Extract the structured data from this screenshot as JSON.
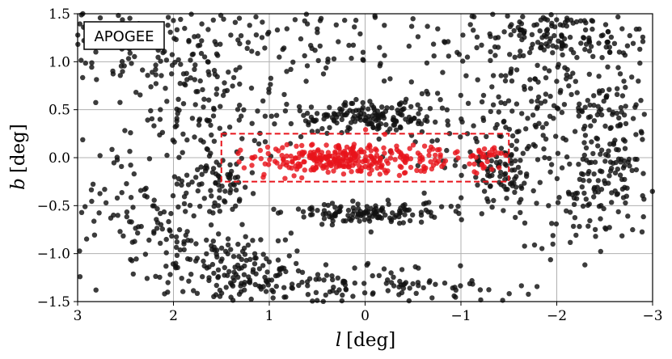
{
  "chart_data": {
    "type": "scatter",
    "xlabel": {
      "symbol": "l",
      "unit": "[deg]"
    },
    "ylabel": {
      "symbol": "b",
      "unit": "[deg]"
    },
    "xlim": [
      3,
      -3
    ],
    "ylim": [
      -1.5,
      1.5
    ],
    "grid": true,
    "x_ticks": [
      {
        "value": 3,
        "label": "3"
      },
      {
        "value": 2,
        "label": "2"
      },
      {
        "value": 1,
        "label": "1"
      },
      {
        "value": 0,
        "label": "0"
      },
      {
        "value": -1,
        "label": "−1"
      },
      {
        "value": -2,
        "label": "−2"
      },
      {
        "value": -3,
        "label": "−3"
      }
    ],
    "y_ticks": [
      {
        "value": 1.5,
        "label": "1.5"
      },
      {
        "value": 1.0,
        "label": "1.0"
      },
      {
        "value": 0.5,
        "label": "0.5"
      },
      {
        "value": 0.0,
        "label": "0.0"
      },
      {
        "value": -0.5,
        "label": "−0.5"
      },
      {
        "value": -1.0,
        "label": "−1.0"
      },
      {
        "value": -1.5,
        "label": "−1.5"
      }
    ],
    "box_label": "APOGEE",
    "region_rectangle": {
      "l_range": [
        1.5,
        -1.5
      ],
      "b_range": [
        -0.25,
        0.25
      ],
      "color": "#e8141b",
      "style": "dashed"
    },
    "series": [
      {
        "color": "#111111",
        "clusters": [
          {
            "l": 0.0,
            "b": 0.42,
            "sl": 0.45,
            "sb": 0.08,
            "n": 160
          },
          {
            "l": 0.0,
            "b": -0.58,
            "sl": 0.4,
            "sb": 0.06,
            "n": 130
          },
          {
            "l": -2.6,
            "b": -0.2,
            "sl": 0.25,
            "sb": 0.25,
            "n": 90
          },
          {
            "l": -2.5,
            "b": 0.35,
            "sl": 0.25,
            "sb": 0.2,
            "n": 55
          },
          {
            "l": 1.25,
            "b": -1.2,
            "sl": 0.35,
            "sb": 0.2,
            "n": 120
          },
          {
            "l": 0.0,
            "b": -1.35,
            "sl": 0.7,
            "sb": 0.12,
            "n": 130
          },
          {
            "l": -1.45,
            "b": -0.15,
            "sl": 0.15,
            "sb": 0.12,
            "n": 60
          },
          {
            "l": 1.55,
            "b": -0.3,
            "sl": 0.2,
            "sb": 0.15,
            "n": 50
          },
          {
            "l": 1.7,
            "b": 0.5,
            "sl": 0.5,
            "sb": 0.5,
            "n": 180
          },
          {
            "l": -1.9,
            "b": 0.7,
            "sl": 0.5,
            "sb": 0.4,
            "n": 180
          },
          {
            "l": -2.0,
            "b": 1.3,
            "sl": 0.6,
            "sb": 0.15,
            "n": 120
          },
          {
            "l": 2.4,
            "b": 1.2,
            "sl": 0.5,
            "sb": 0.25,
            "n": 90
          },
          {
            "l": 0.5,
            "b": 1.3,
            "sl": 1.0,
            "sb": 0.18,
            "n": 90
          },
          {
            "l": 2.6,
            "b": -0.5,
            "sl": 0.35,
            "sb": 0.35,
            "n": 70
          },
          {
            "l": 1.9,
            "b": -0.9,
            "sl": 0.35,
            "sb": 0.3,
            "n": 70
          },
          {
            "l": -1.0,
            "b": 0.15,
            "sl": 0.4,
            "sb": 0.3,
            "n": 40
          },
          {
            "l": 0.0,
            "b": 0.9,
            "sl": 1.3,
            "sb": 0.25,
            "n": 40
          },
          {
            "l": -2.1,
            "b": -0.6,
            "sl": 0.4,
            "sb": 0.25,
            "n": 60
          }
        ]
      },
      {
        "color": "#e8141b",
        "clusters": [
          {
            "l": 0.25,
            "b": -0.01,
            "sl": 0.45,
            "sb": 0.08,
            "n": 260
          },
          {
            "l": -0.65,
            "b": 0.0,
            "sl": 0.2,
            "sb": 0.08,
            "n": 40
          },
          {
            "l": -1.25,
            "b": 0.02,
            "sl": 0.1,
            "sb": 0.08,
            "n": 30
          }
        ]
      }
    ]
  }
}
